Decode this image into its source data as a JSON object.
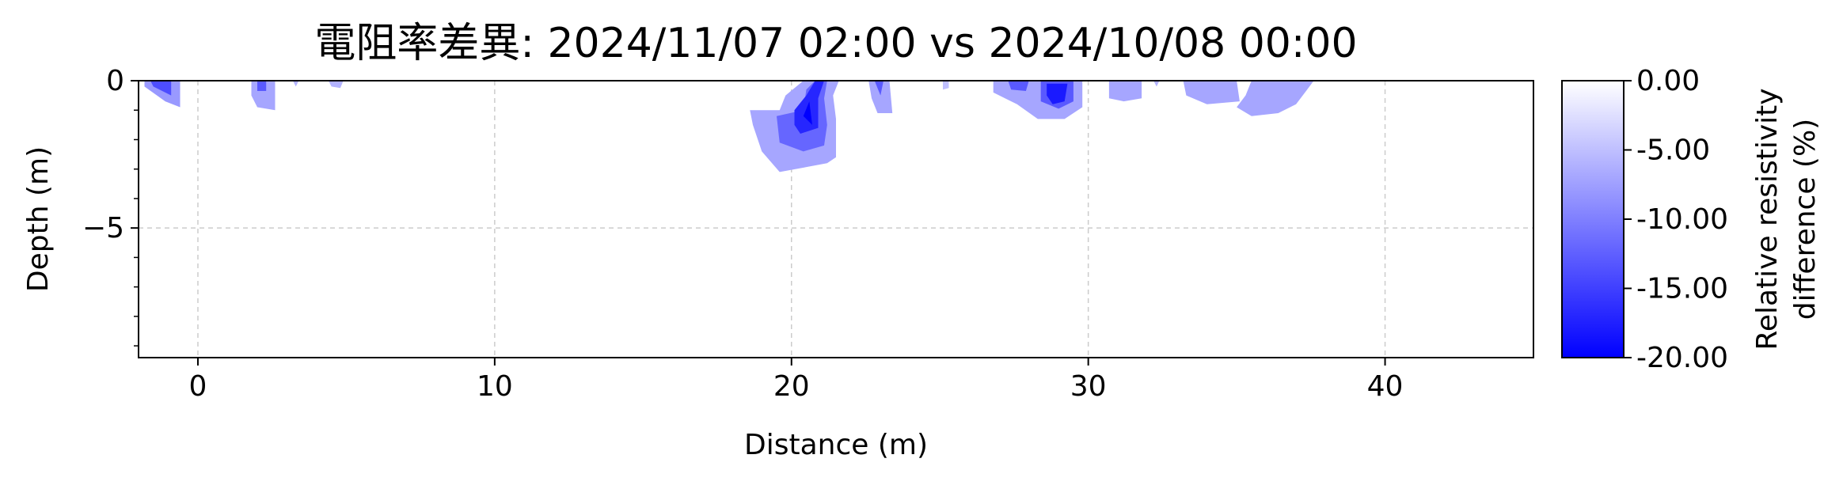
{
  "chart_data": {
    "type": "heatmap",
    "title": "電阻率差異: 2024/11/07 02:00 vs 2024/10/08 00:00",
    "xlabel": "Distance (m)",
    "ylabel": "Depth (m)",
    "xlim": [
      -2,
      45
    ],
    "ylim": [
      -9.4,
      0
    ],
    "xticks": [
      0,
      10,
      20,
      30,
      40
    ],
    "xtick_labels": [
      "0",
      "10",
      "20",
      "30",
      "40"
    ],
    "yticks": [
      0,
      -5
    ],
    "ytick_labels": [
      "0",
      "−5"
    ],
    "yminor_ticks": [
      -1,
      -2,
      -3,
      -4,
      -6,
      -7,
      -8,
      -9
    ],
    "grid": true,
    "colorbar": {
      "label_lines": [
        "Relative resistivity",
        "difference (%)"
      ],
      "range": [
        -20,
        0
      ],
      "ticks": [
        0,
        -5,
        -10,
        -15,
        -20
      ],
      "tick_labels": [
        "0.00",
        "-5.00",
        "-10.00",
        "-15.00",
        "-20.00"
      ],
      "colors": [
        "#0000ff",
        "#ffffff"
      ]
    },
    "regions": [
      {
        "level": -8,
        "points": [
          [
            -1.8,
            0
          ],
          [
            -0.6,
            0
          ],
          [
            -0.6,
            0.9
          ],
          [
            -1.1,
            0.7
          ],
          [
            -1.8,
            0.2
          ]
        ]
      },
      {
        "level": -14,
        "points": [
          [
            -1.6,
            0
          ],
          [
            -0.9,
            0
          ],
          [
            -0.9,
            0.5
          ],
          [
            -1.5,
            0.2
          ]
        ]
      },
      {
        "level": -7,
        "points": [
          [
            1.8,
            0
          ],
          [
            2.6,
            0
          ],
          [
            2.6,
            1.0
          ],
          [
            2.0,
            0.9
          ],
          [
            1.8,
            0.5
          ]
        ]
      },
      {
        "level": -13,
        "points": [
          [
            2.0,
            0
          ],
          [
            2.3,
            0
          ],
          [
            2.3,
            0.35
          ],
          [
            2.0,
            0.35
          ]
        ]
      },
      {
        "level": -6,
        "points": [
          [
            3.2,
            0
          ],
          [
            3.4,
            0
          ],
          [
            3.3,
            0.2
          ]
        ]
      },
      {
        "level": -6,
        "points": [
          [
            4.4,
            0
          ],
          [
            4.9,
            0
          ],
          [
            4.8,
            0.25
          ],
          [
            4.5,
            0.2
          ]
        ]
      },
      {
        "level": -7,
        "points": [
          [
            18.6,
            1.0
          ],
          [
            19.6,
            1.0
          ],
          [
            19.8,
            0.5
          ],
          [
            20.4,
            0
          ],
          [
            21.6,
            0
          ],
          [
            21.4,
            0.5
          ],
          [
            21.5,
            1.3
          ],
          [
            21.5,
            2.6
          ],
          [
            21.2,
            2.8
          ],
          [
            19.6,
            3.1
          ],
          [
            19.0,
            2.4
          ],
          [
            18.7,
            1.5
          ]
        ]
      },
      {
        "level": -12,
        "points": [
          [
            19.5,
            1.2
          ],
          [
            20.4,
            1.0
          ],
          [
            20.5,
            0.3
          ],
          [
            20.8,
            0
          ],
          [
            21.2,
            0
          ],
          [
            21.1,
            0.6
          ],
          [
            21.2,
            1.5
          ],
          [
            21.1,
            2.2
          ],
          [
            20.4,
            2.4
          ],
          [
            19.6,
            2.1
          ]
        ]
      },
      {
        "level": -17,
        "points": [
          [
            20.1,
            1.0
          ],
          [
            20.5,
            0.5
          ],
          [
            20.8,
            0
          ],
          [
            21.1,
            0
          ],
          [
            20.9,
            0.6
          ],
          [
            20.9,
            1.6
          ],
          [
            20.3,
            1.8
          ],
          [
            20.1,
            1.5
          ]
        ]
      },
      {
        "level": -20,
        "points": [
          [
            20.4,
            1.2
          ],
          [
            20.6,
            0.7
          ],
          [
            20.7,
            1.5
          ]
        ]
      },
      {
        "level": -7,
        "points": [
          [
            22.6,
            0
          ],
          [
            23.3,
            0
          ],
          [
            23.4,
            1.1
          ],
          [
            22.9,
            1.1
          ],
          [
            22.7,
            0.6
          ]
        ]
      },
      {
        "level": -13,
        "points": [
          [
            22.8,
            0
          ],
          [
            23.1,
            0
          ],
          [
            23.0,
            0.5
          ]
        ]
      },
      {
        "level": -5,
        "points": [
          [
            25.1,
            0
          ],
          [
            25.3,
            0
          ],
          [
            25.3,
            0.25
          ],
          [
            25.1,
            0.3
          ]
        ]
      },
      {
        "level": -7,
        "points": [
          [
            26.8,
            0
          ],
          [
            29.8,
            0
          ],
          [
            29.8,
            0.9
          ],
          [
            29.2,
            1.3
          ],
          [
            28.3,
            1.3
          ],
          [
            27.6,
            0.8
          ],
          [
            26.8,
            0.4
          ]
        ]
      },
      {
        "level": -13,
        "points": [
          [
            27.3,
            0
          ],
          [
            28.0,
            0
          ],
          [
            27.9,
            0.35
          ],
          [
            27.4,
            0.3
          ]
        ]
      },
      {
        "level": -13,
        "points": [
          [
            28.4,
            0
          ],
          [
            29.5,
            0
          ],
          [
            29.5,
            0.7
          ],
          [
            29.0,
            0.95
          ],
          [
            28.4,
            0.7
          ]
        ]
      },
      {
        "level": -18,
        "points": [
          [
            28.6,
            0.1
          ],
          [
            29.3,
            0.1
          ],
          [
            29.2,
            0.7
          ],
          [
            28.8,
            0.8
          ],
          [
            28.6,
            0.5
          ]
        ]
      },
      {
        "level": -7,
        "points": [
          [
            30.7,
            0
          ],
          [
            31.8,
            0
          ],
          [
            31.8,
            0.6
          ],
          [
            31.2,
            0.7
          ],
          [
            30.7,
            0.6
          ]
        ]
      },
      {
        "level": -6,
        "points": [
          [
            32.2,
            0
          ],
          [
            32.4,
            0
          ],
          [
            32.3,
            0.2
          ]
        ]
      },
      {
        "level": -7,
        "points": [
          [
            33.2,
            0
          ],
          [
            35.0,
            0
          ],
          [
            35.1,
            0.7
          ],
          [
            34.0,
            0.8
          ],
          [
            33.3,
            0.5
          ]
        ]
      },
      {
        "level": -7,
        "points": [
          [
            35.5,
            0
          ],
          [
            37.6,
            0
          ],
          [
            37.0,
            0.8
          ],
          [
            36.4,
            1.1
          ],
          [
            35.5,
            1.2
          ],
          [
            35.0,
            0.9
          ],
          [
            35.3,
            0.5
          ]
        ]
      }
    ]
  }
}
